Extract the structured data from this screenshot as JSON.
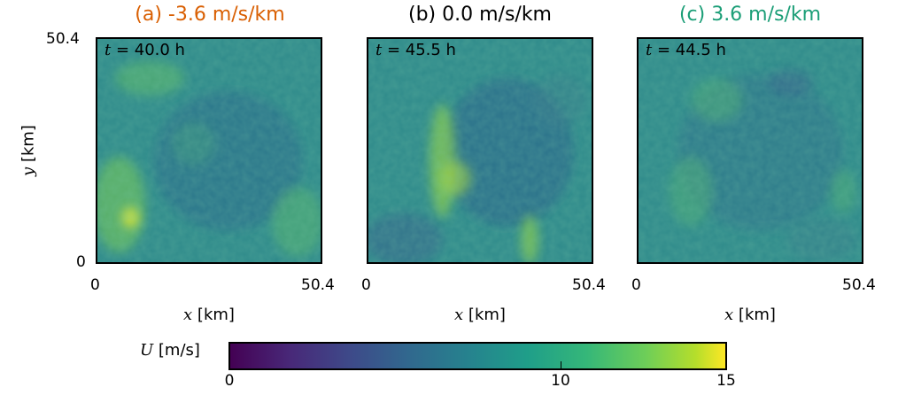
{
  "colors": {
    "panel_a": "#d95f02",
    "panel_b": "#000000",
    "panel_c": "#1b9e77"
  },
  "chart_data": [
    {
      "type": "heatmap",
      "title": "(a) -3.6 m/s/km",
      "annotation_var": "t",
      "annotation_rest": " = 40.0 h",
      "xlabel_var": "x",
      "xlabel_unit": " [km]",
      "ylabel_var": "y",
      "ylabel_unit": " [km]",
      "xlim": [
        0,
        50.4
      ],
      "ylim": [
        0,
        50.4
      ],
      "x_ticks": [
        "0",
        "50.4"
      ],
      "y_ticks": [
        "0",
        "50.4"
      ],
      "colormap": "viridis"
    },
    {
      "type": "heatmap",
      "title": "(b) 0.0 m/s/km",
      "annotation_var": "t",
      "annotation_rest": " = 45.5 h",
      "xlabel_var": "x",
      "xlabel_unit": " [km]",
      "xlim": [
        0,
        50.4
      ],
      "ylim": [
        0,
        50.4
      ],
      "x_ticks": [
        "0",
        "50.4"
      ],
      "colormap": "viridis"
    },
    {
      "type": "heatmap",
      "title": "(c) 3.6 m/s/km",
      "annotation_var": "t",
      "annotation_rest": " = 44.5 h",
      "xlabel_var": "x",
      "xlabel_unit": " [km]",
      "xlim": [
        0,
        50.4
      ],
      "ylim": [
        0,
        50.4
      ],
      "x_ticks": [
        "0",
        "50.4"
      ],
      "colormap": "viridis"
    }
  ],
  "colorbar": {
    "label_var": "U",
    "label_unit": " [m/s]",
    "range": [
      0,
      15
    ],
    "ticks": [
      "0",
      "10",
      "15"
    ],
    "colormap": "viridis"
  }
}
